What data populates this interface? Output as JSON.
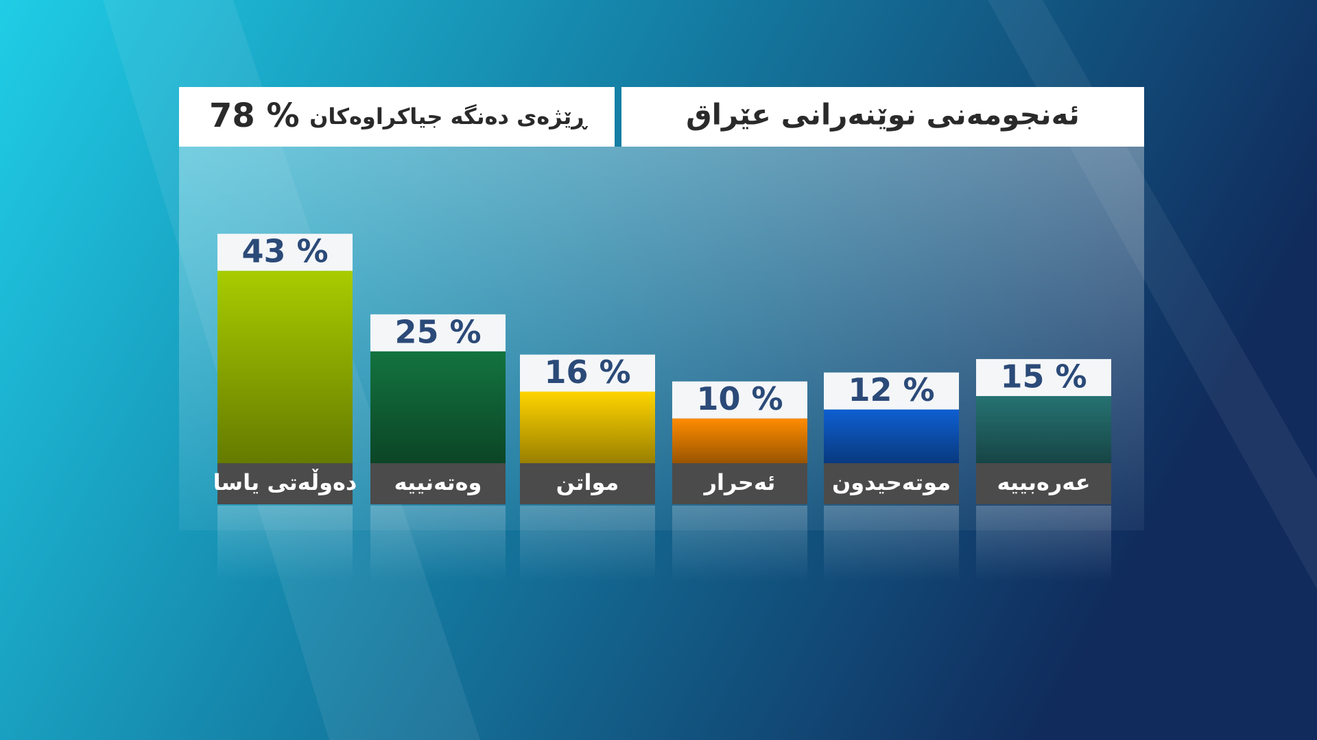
{
  "chart_data": {
    "type": "bar",
    "title": "ئەنجومەنی نوێنەرانی عێراق",
    "subtitle": "ڕێژەی دەنگە جیاکراوەکان",
    "turnout": "78 %",
    "categories": [
      "دەوڵەتی یاسا",
      "وەتەنییە",
      "مواتن",
      "ئەحرار",
      "موتەحیدون",
      "عەرەبییە"
    ],
    "values": [
      43,
      25,
      16,
      10,
      12,
      15
    ],
    "value_labels": [
      "43 %",
      "25 %",
      "16 %",
      "10 %",
      "12 %",
      "15 %"
    ],
    "colors": [
      "#a8cc00",
      "#13733f",
      "#ffd400",
      "#ff8c00",
      "#0e5fd2",
      "#267272"
    ]
  }
}
